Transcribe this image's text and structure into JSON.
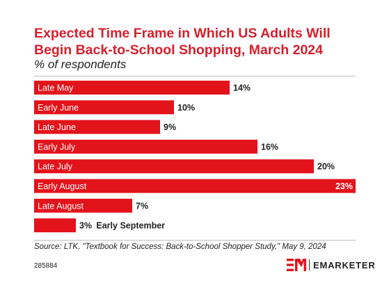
{
  "header": {
    "title": "Expected Time Frame in Which US Adults Will Begin Back-to-School Shopping, March 2024",
    "subtitle": "% of respondents"
  },
  "footer": {
    "source": "Source: LTK, \"Textbook for Success: Back-to-School Shopper Study,\" May 9, 2024",
    "chart_id": "285884",
    "brand": "EMARKETER"
  },
  "colors": {
    "bar": "#e3131b",
    "title": "#d61f2c",
    "label_on_bar": "#ffffff",
    "label_off_bar": "#222222"
  },
  "chart_data": {
    "type": "bar",
    "orientation": "horizontal",
    "title": "Expected Time Frame in Which US Adults Will Begin Back-to-School Shopping, March 2024",
    "subtitle": "% of respondents",
    "categories": [
      "Late May",
      "Early June",
      "Late June",
      "Early July",
      "Late July",
      "Early August",
      "Late August",
      "Early September"
    ],
    "values": [
      14,
      10,
      9,
      16,
      20,
      23,
      7,
      3
    ],
    "value_labels": [
      "14%",
      "10%",
      "9%",
      "16%",
      "20%",
      "23%",
      "7%",
      "3%"
    ],
    "xlim": [
      0,
      23
    ],
    "grid": false,
    "legend": "none"
  }
}
